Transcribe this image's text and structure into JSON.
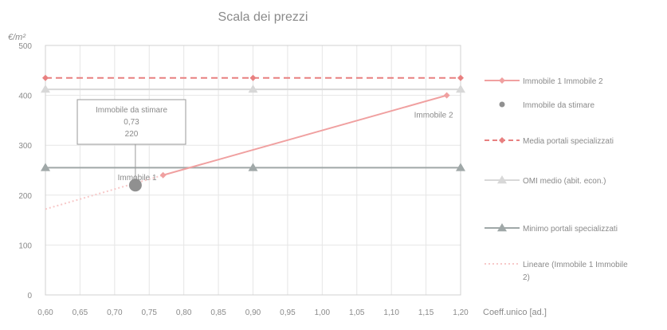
{
  "chart_data": {
    "type": "line",
    "title": "Scala dei prezzi",
    "ylabel": "€/m²",
    "xlabel": "Coeff.unico [ad.]",
    "xlim": [
      0.6,
      1.2
    ],
    "ylim": [
      0,
      500
    ],
    "x_ticks": [
      "0,60",
      "0,65",
      "0,70",
      "0,75",
      "0,80",
      "0,85",
      "0,90",
      "0,95",
      "1,00",
      "1,05",
      "1,10",
      "1,15",
      "1,20"
    ],
    "y_ticks": [
      "0",
      "100",
      "200",
      "300",
      "400",
      "500"
    ],
    "grid": true,
    "legend_position": "right",
    "colors": {
      "line_immobili": "#f0a0a0",
      "immobile_da_stimare": "#909090",
      "media_portali": "#e88080",
      "omi": "#d8d8d8",
      "minimo_portali": "#a0a8a8",
      "lineare": "#f7c8c8",
      "grid": "#e6e6e6",
      "axis_text": "#8a8a8a"
    },
    "series": [
      {
        "name": "Immobile 1 Immobile 2",
        "style": "solid-diamond",
        "x": [
          0.77,
          1.18
        ],
        "y": [
          240,
          400
        ]
      },
      {
        "name": "Immobile da stimare",
        "style": "marker-circle",
        "x": [
          0.73
        ],
        "y": [
          220
        ]
      },
      {
        "name": "Media portali specializzati",
        "style": "dashed-diamond",
        "x": [
          0.6,
          0.9,
          1.2
        ],
        "y": [
          435,
          435,
          435
        ]
      },
      {
        "name": "OMI medio (abit. econ.)",
        "style": "solid-triangle",
        "x": [
          0.6,
          0.9,
          1.2
        ],
        "y": [
          412,
          412,
          412
        ]
      },
      {
        "name": "Minimo portali specializzati",
        "style": "solid-triangle",
        "x": [
          0.6,
          0.9,
          1.2
        ],
        "y": [
          255,
          255,
          255
        ]
      },
      {
        "name": "Lineare (Immobile 1 Immobile 2)",
        "style": "dotted",
        "x": [
          0.6,
          0.77
        ],
        "y": [
          172,
          240
        ]
      }
    ],
    "annotations": {
      "callout_lines": [
        "Immobile da stimare",
        "0,73",
        "220"
      ],
      "immobile1_label": "Immobile 1",
      "immobile2_label": "Immobile 2"
    },
    "legend_labels": [
      [
        "Immobile 1 Immobile 2"
      ],
      [
        "Immobile da stimare"
      ],
      [
        "Media portali specializzati"
      ],
      [
        "OMI medio (abit. econ.)"
      ],
      [
        "Minimo portali specializzati"
      ],
      [
        "Lineare (Immobile 1 Immobile",
        "2)"
      ]
    ]
  }
}
